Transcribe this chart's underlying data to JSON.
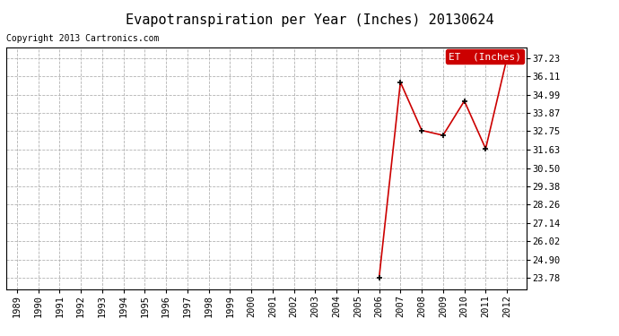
{
  "title": "Evapotranspiration per Year (Inches) 20130624",
  "copyright_text": "Copyright 2013 Cartronics.com",
  "legend_label": "ET  (Inches)",
  "years": [
    1989,
    1990,
    1991,
    1992,
    1993,
    1994,
    1995,
    1996,
    1997,
    1998,
    1999,
    2000,
    2001,
    2002,
    2003,
    2004,
    2005,
    2006,
    2007,
    2008,
    2009,
    2010,
    2011,
    2012
  ],
  "values": [
    null,
    null,
    null,
    null,
    null,
    null,
    null,
    null,
    null,
    null,
    null,
    null,
    null,
    null,
    null,
    null,
    null,
    23.78,
    35.75,
    32.8,
    32.5,
    34.6,
    31.68,
    37.23
  ],
  "yticks": [
    23.78,
    24.9,
    26.02,
    27.14,
    28.26,
    29.38,
    30.5,
    31.63,
    32.75,
    33.87,
    34.99,
    36.11,
    37.23
  ],
  "ylim": [
    23.1,
    37.9
  ],
  "xlim": [
    1988.5,
    2012.9
  ],
  "line_color": "#cc0000",
  "marker": "+",
  "marker_color": "#000000",
  "marker_size": 5,
  "line_width": 1.2,
  "bg_color": "#ffffff",
  "grid_color": "#aaaaaa",
  "legend_bg": "#cc0000",
  "legend_text_color": "#ffffff",
  "title_fontsize": 11,
  "tick_fontsize": 7.5,
  "copyright_fontsize": 7
}
